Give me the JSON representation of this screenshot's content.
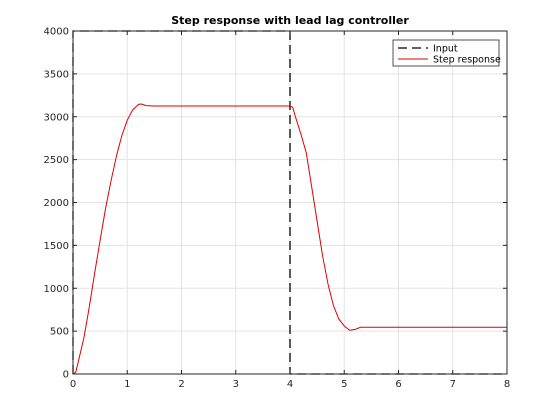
{
  "chart_data": {
    "type": "line",
    "title": "Step response with lead lag controller",
    "xlabel": "",
    "ylabel": "",
    "xlim": [
      0,
      8
    ],
    "ylim": [
      0,
      4000
    ],
    "xticks": [
      "0",
      "1",
      "2",
      "3",
      "4",
      "5",
      "6",
      "7",
      "8"
    ],
    "yticks": [
      "0",
      "500",
      "1000",
      "1500",
      "2000",
      "2500",
      "3000",
      "3500",
      "4000"
    ],
    "grid": true,
    "legend_position": "top-right",
    "series": [
      {
        "name": "Input",
        "style": "dashed",
        "color": "#000000",
        "x": [
          0,
          0,
          4,
          4,
          8
        ],
        "y": [
          0,
          4000,
          4000,
          0,
          0
        ]
      },
      {
        "name": "Step response",
        "style": "solid",
        "color": "#e00000",
        "x": [
          0.0,
          0.05,
          0.1,
          0.2,
          0.3,
          0.4,
          0.5,
          0.6,
          0.7,
          0.8,
          0.9,
          1.0,
          1.1,
          1.2,
          1.25,
          1.35,
          1.5,
          2.0,
          3.0,
          3.8,
          4.0,
          4.05,
          4.1,
          4.2,
          4.3,
          4.4,
          4.5,
          4.6,
          4.7,
          4.8,
          4.9,
          5.0,
          5.1,
          5.2,
          5.3,
          5.5,
          6.0,
          7.0,
          8.0
        ],
        "y": [
          0,
          20,
          150,
          420,
          780,
          1180,
          1560,
          1930,
          2250,
          2540,
          2780,
          2960,
          3080,
          3140,
          3150,
          3130,
          3125,
          3125,
          3125,
          3125,
          3125,
          3110,
          3000,
          2800,
          2580,
          2180,
          1780,
          1380,
          1050,
          800,
          640,
          560,
          510,
          520,
          545,
          545,
          545,
          545,
          545
        ]
      }
    ]
  }
}
